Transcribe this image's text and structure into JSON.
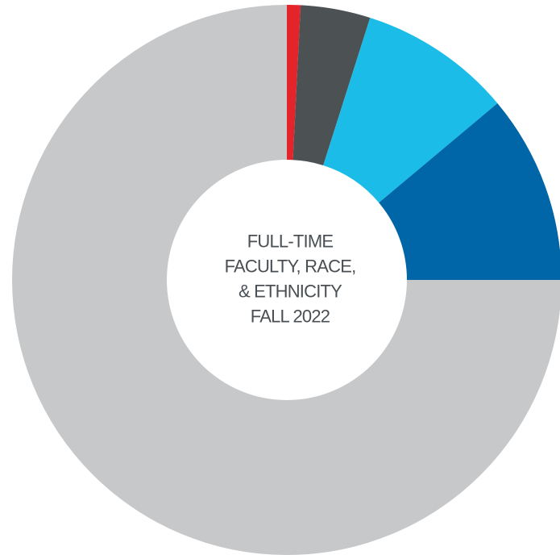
{
  "chart_data": {
    "type": "donut",
    "title": [
      "FULL-TIME",
      "FACULTY, RACE,",
      "& ETHNICITY",
      "FALL 2022"
    ],
    "values": [
      0.8,
      4.1,
      9.0,
      11.1,
      75.0
    ],
    "colors": [
      "#e3242b",
      "#4c5153",
      "#1bbde8",
      "#0066a8",
      "#c7c8ca"
    ]
  }
}
